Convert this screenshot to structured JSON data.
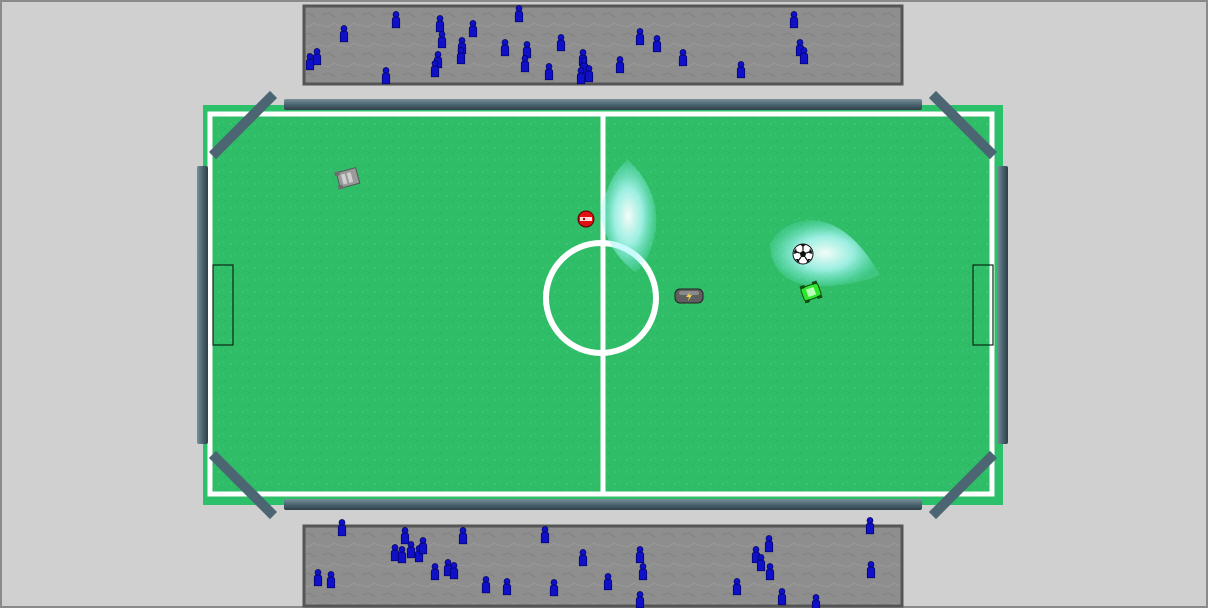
{
  "game": {
    "title": "",
    "field": {
      "grass_color": "#2fbd67",
      "line_color": "#ffffff",
      "wall_color": "#4b6572",
      "stand_color": "#8f8f8f",
      "background_color": "#d0d0d0"
    },
    "stands": {
      "top_spectators": 40,
      "bottom_spectators": 52,
      "spectator_color": "#1010c8"
    },
    "objects": [
      {
        "name": "soccer-ball",
        "icon": "soccer-ball-icon"
      },
      {
        "name": "red-player-car",
        "icon": "red-car-icon",
        "color": "#e01010"
      },
      {
        "name": "green-player-car",
        "icon": "green-car-icon",
        "color": "#2ee82e"
      },
      {
        "name": "grey-robot",
        "icon": "robot-icon",
        "color": "#9a9a9a"
      },
      {
        "name": "battery-powerup",
        "icon": "battery-icon",
        "color": "#6a6a6a"
      }
    ]
  }
}
